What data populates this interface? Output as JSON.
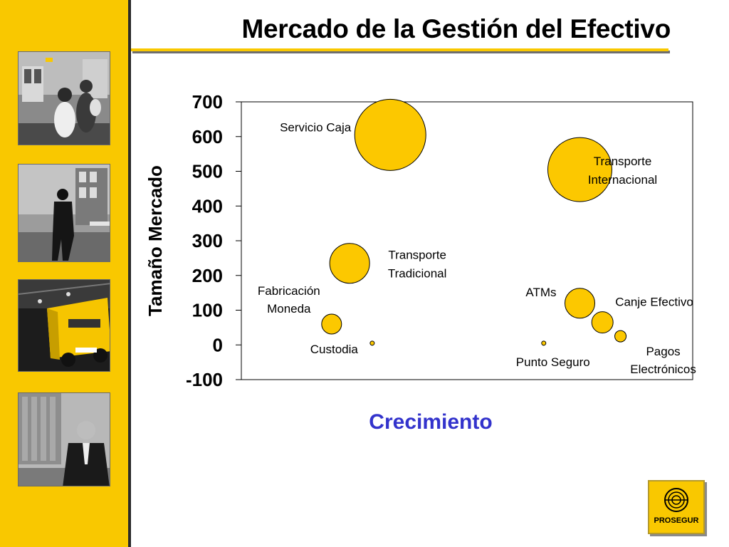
{
  "title": "Mercado de la Gestión del Efectivo",
  "logo_text": "PROSEGUR",
  "sidebar_photos": [
    {
      "icon": "family-photo"
    },
    {
      "icon": "security-guard-photo"
    },
    {
      "icon": "armored-truck-photo"
    },
    {
      "icon": "businessman-photo"
    }
  ],
  "colors": {
    "accent": "#f9c800",
    "bubble": "#fcc800",
    "xlabel": "#3333cc"
  },
  "chart_data": {
    "type": "bubble",
    "title": "",
    "xlabel": "Crecimiento",
    "ylabel": "Tamaño Mercado",
    "ylim": [
      -100,
      700
    ],
    "yticks": [
      "700",
      "600",
      "500",
      "400",
      "300",
      "200",
      "100",
      "0",
      "-100"
    ],
    "grid": false,
    "series": [
      {
        "label": "Servicio Caja",
        "x": 3.3,
        "y": 605,
        "size": 100
      },
      {
        "label": "Transporte Internacional",
        "x": 7.5,
        "y": 505,
        "size": 90
      },
      {
        "label": "Transporte Tradicional",
        "x": 2.4,
        "y": 235,
        "size": 56
      },
      {
        "label": "Fabricación Moneda",
        "x": 2.0,
        "y": 60,
        "size": 28
      },
      {
        "label": "Custodia",
        "x": 2.9,
        "y": 5,
        "size": 6
      },
      {
        "label": "ATMs",
        "x": 7.5,
        "y": 120,
        "size": 42
      },
      {
        "label": "Canje Efectivo",
        "x": 8.0,
        "y": 65,
        "size": 30
      },
      {
        "label": "Punto Seguro",
        "x": 6.7,
        "y": 5,
        "size": 6
      },
      {
        "label": "Pagos Electrónicos",
        "x": 8.4,
        "y": 25,
        "size": 16
      }
    ],
    "xlim": [
      0,
      10
    ]
  }
}
